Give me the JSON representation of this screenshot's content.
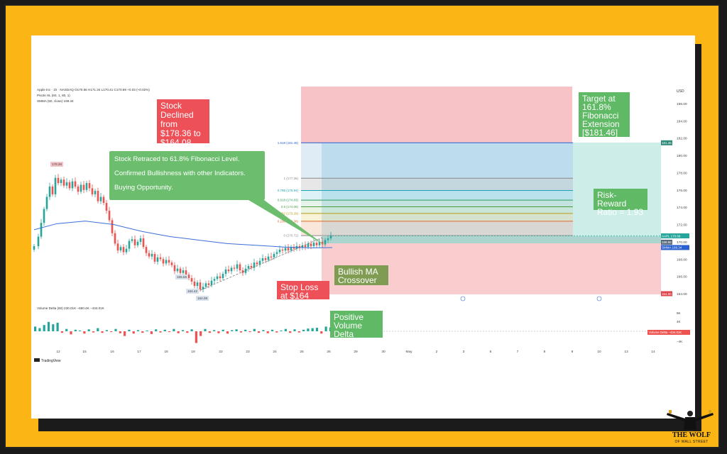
{
  "header": {
    "title": "Apple Inc · 1h · NASDAQ",
    "ohlc": "O170.66 H171.34 L170.41 C170.69 +0.03 (+0.02%)",
    "pivots": "Pivots HL (60, 1, 60, 1)",
    "sma": "SMMA (60, close) 169.34",
    "currency": "USD"
  },
  "chart_data": {
    "type": "candlestick",
    "price_axis": {
      "ticks": [
        "186.00",
        "184.00",
        "182.00",
        "180.00",
        "178.00",
        "176.00",
        "174.00",
        "172.00",
        "170.00",
        "168.00",
        "166.00",
        "164.00"
      ],
      "ylim": [
        163.6,
        187.4
      ]
    },
    "date_axis": {
      "ticks": [
        "12",
        "15",
        "16",
        "17",
        "18",
        "19",
        "22",
        "23",
        "24",
        "25",
        "26",
        "29",
        "30",
        "May",
        "2",
        "3",
        "6",
        "7",
        "8",
        "9",
        "10",
        "13",
        "14"
      ]
    },
    "pivot_labels": [
      "178.36",
      "165.55",
      "164.42",
      "164.08"
    ],
    "fibonacci": {
      "levels": [
        {
          "ratio": 1.618,
          "label": "1.618 (181.46)",
          "price": 181.46,
          "color": "#2a5fd0"
        },
        {
          "ratio": 1,
          "label": "1 (177.36)",
          "price": 177.36,
          "color": "#888888"
        },
        {
          "ratio": 0.786,
          "label": "0.786 (175.94)",
          "price": 175.94,
          "color": "#1aa3b4"
        },
        {
          "ratio": 0.618,
          "label": "0.618 (174.83)",
          "price": 174.83,
          "color": "#2f9a5c"
        },
        {
          "ratio": 0.5,
          "label": "0.5 (174.06)",
          "price": 174.06,
          "color": "#4c9b3e"
        },
        {
          "ratio": 0.382,
          "label": "0.382 (173.29)",
          "price": 173.29,
          "color": "#b59b1a"
        },
        {
          "ratio": 0.236,
          "label": "0.236 (172.38)",
          "price": 172.38,
          "color": "#e06a2a"
        },
        {
          "ratio": 0,
          "label": "0 (170.72)",
          "price": 170.72,
          "color": "#888888"
        }
      ]
    },
    "price_tags": [
      {
        "label": "181.46",
        "price": 181.46,
        "color": "#2f8a7a"
      },
      {
        "label": "AAPL",
        "value": "170.69",
        "price": 170.69,
        "color": "#26a69a"
      },
      {
        "label": "169.96",
        "price": 169.96,
        "color": "#5a6a7a"
      },
      {
        "label": "SMMA",
        "value": "169.34",
        "price": 169.34,
        "color": "#2a5fd0"
      },
      {
        "label": "164.00",
        "price": 164.0,
        "color": "#e0444c"
      }
    ],
    "volume_panel": {
      "title": "Volume Delta (60)",
      "values_text": "230.01K  −660.4K  −434.01K",
      "axis_ticks": [
        "8K",
        "4K",
        "0",
        "−4K"
      ],
      "tag": "Volume Delta",
      "tag_value": "−434.01K"
    },
    "volume_bars": [
      60,
      40,
      80,
      120,
      90,
      110,
      -20,
      30,
      -40,
      20,
      10,
      -30,
      25,
      -15,
      40,
      -20,
      15,
      -10,
      30,
      -25,
      -60,
      20,
      -30,
      15,
      -20,
      10,
      -35,
      25,
      -15,
      20,
      -10,
      30,
      -25,
      15,
      -20,
      25,
      -150,
      -60,
      30,
      -20,
      15,
      -25,
      20,
      -30,
      15,
      25,
      -15,
      20,
      -10,
      30,
      -20,
      15,
      -25,
      20,
      -15,
      10,
      30,
      -20,
      25,
      -15,
      20,
      35,
      40,
      45,
      -30,
      60,
      50
    ]
  },
  "annotations": {
    "declined": "Stock Declined from $178.36 to $164.08",
    "retraced_1": "Stock Retraced to 61.8% Fibonacci Level.",
    "retraced_2": "Confirmed Bullishness with other Indicators.",
    "retraced_3": "Buying Opportunity.",
    "target": "Target at 161.8% Fibonacci Extension [$181.46]",
    "risk_reward": "Risk-Reward Ratio = 1.93",
    "bullish_ma": "Bullish MA Crossover",
    "stop_loss": "Stop Loss at $164",
    "positive_delta": "Positive Volume Delta"
  },
  "footer": {
    "tradingview": "TradingView"
  },
  "logo": {
    "line1": "THE WOLF",
    "line2": "OF WALL STREET"
  },
  "colors": {
    "bg_frame": "#fbb616",
    "up": "#26a69a",
    "down": "#ef5350",
    "target_zone": "#f6b9bd",
    "profit_zone": "#9ad0e6",
    "stop_zone": "#f8c3c6"
  }
}
